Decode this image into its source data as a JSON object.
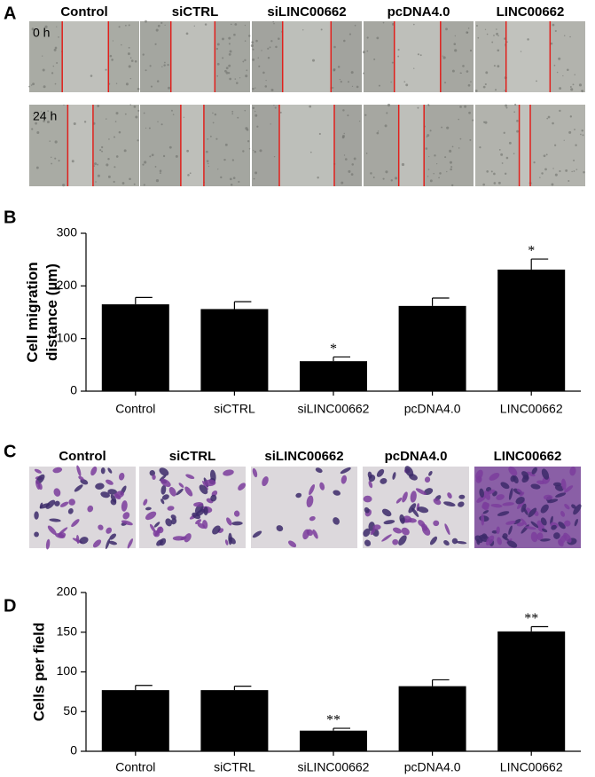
{
  "panel_labels": [
    "A",
    "B",
    "C",
    "D"
  ],
  "scratch_panel": {
    "columns": [
      "Control",
      "siCTRL",
      "siLINC00662",
      "pcDNA4.0",
      "LINC00662"
    ],
    "rows": [
      "0 h",
      "24 h"
    ]
  },
  "transwell_panel": {
    "columns": [
      "Control",
      "siCTRL",
      "siLINC00662",
      "pcDNA4.0",
      "LINC00662"
    ]
  },
  "chart_data": [
    {
      "type": "bar",
      "y_label": "Cell migration distance (µm)",
      "categories": [
        "Control",
        "siCTRL",
        "siLINC00662",
        "pcDNA4.0",
        "LINC00662"
      ],
      "values": [
        165,
        156,
        57,
        162,
        231
      ],
      "errors": [
        13,
        14,
        8,
        15,
        20
      ],
      "significance": [
        null,
        null,
        "*",
        null,
        "*"
      ],
      "color": "#000000",
      "ylim": [
        0,
        300
      ],
      "yticks": [
        0,
        100,
        200,
        300
      ],
      "grid": false
    },
    {
      "type": "bar",
      "y_label": "Cells per field",
      "categories": [
        "Control",
        "siCTRL",
        "siLINC00662",
        "pcDNA4.0",
        "LINC00662"
      ],
      "values": [
        77,
        77,
        26,
        82,
        151
      ],
      "errors": [
        6,
        5,
        3,
        8,
        6
      ],
      "significance": [
        null,
        null,
        "**",
        null,
        "**"
      ],
      "color": "#000000",
      "ylim": [
        0,
        200
      ],
      "yticks": [
        0,
        50,
        100,
        150,
        200
      ],
      "grid": false
    }
  ]
}
